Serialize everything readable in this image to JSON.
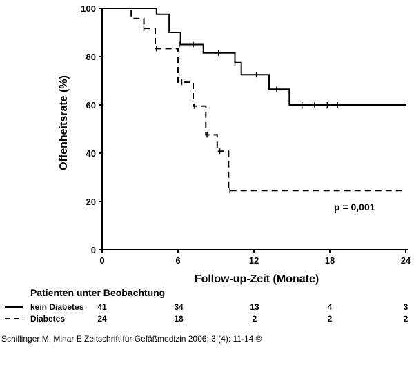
{
  "chart_data": {
    "type": "line",
    "ylabel": "Offenheitsrate (%)",
    "xlabel": "Follow-up-Zeit (Monate)",
    "xlim": [
      0,
      24
    ],
    "ylim": [
      0,
      100
    ],
    "x_ticks": [
      "0",
      "6",
      "12",
      "18",
      "24"
    ],
    "y_ticks": [
      "0",
      "20",
      "40",
      "60",
      "80",
      "100"
    ],
    "grid": false,
    "annotation": "p = 0,001",
    "series": [
      {
        "name": "kein Diabetes",
        "style": "solid",
        "steps": [
          [
            0,
            100
          ],
          [
            4.3,
            100
          ],
          [
            4.3,
            97.5
          ],
          [
            5.3,
            97.5
          ],
          [
            5.3,
            90
          ],
          [
            6.2,
            90
          ],
          [
            6.2,
            85
          ],
          [
            8.0,
            85
          ],
          [
            8.0,
            81.5
          ],
          [
            10.5,
            81.5
          ],
          [
            10.5,
            77.5
          ],
          [
            11.0,
            77.5
          ],
          [
            11.0,
            72.5
          ],
          [
            13.2,
            72.5
          ],
          [
            13.2,
            66.5
          ],
          [
            14.8,
            66.5
          ],
          [
            14.8,
            60
          ],
          [
            24,
            60
          ]
        ],
        "censored": [
          [
            6.1,
            85
          ],
          [
            7.2,
            85
          ],
          [
            9.2,
            81.5
          ],
          [
            10.5,
            77.5
          ],
          [
            12.2,
            72.5
          ],
          [
            13.8,
            66.5
          ],
          [
            15.8,
            60
          ],
          [
            16.8,
            60
          ],
          [
            17.8,
            60
          ],
          [
            18.6,
            60
          ]
        ]
      },
      {
        "name": "Diabetes",
        "style": "dashed",
        "steps": [
          [
            0,
            100
          ],
          [
            2.3,
            100
          ],
          [
            2.3,
            95.8
          ],
          [
            3.3,
            95.8
          ],
          [
            3.3,
            91.7
          ],
          [
            4.2,
            91.7
          ],
          [
            4.2,
            83.3
          ],
          [
            6.0,
            83.3
          ],
          [
            6.0,
            69.4
          ],
          [
            7.2,
            69.4
          ],
          [
            7.2,
            59.5
          ],
          [
            8.2,
            59.5
          ],
          [
            8.2,
            47.6
          ],
          [
            9.1,
            47.6
          ],
          [
            9.1,
            40.8
          ],
          [
            10.0,
            40.8
          ],
          [
            10.0,
            24.5
          ],
          [
            24,
            24.5
          ]
        ],
        "censored": [
          [
            3.3,
            91.7
          ],
          [
            4.3,
            83.3
          ],
          [
            6.3,
            69.4
          ],
          [
            7.3,
            59.5
          ],
          [
            8.3,
            47.6
          ],
          [
            9.3,
            40.8
          ],
          [
            10.1,
            24.5
          ]
        ]
      }
    ]
  },
  "risk_table": {
    "header": "Patienten unter Beobachtung",
    "rows": [
      {
        "label": "kein Diabetes",
        "style": "solid",
        "counts": [
          "41",
          "34",
          "13",
          "4",
          "3"
        ]
      },
      {
        "label": "Diabetes",
        "style": "dashed",
        "counts": [
          "24",
          "18",
          "2",
          "2",
          "2"
        ]
      }
    ]
  },
  "citation": "Schillinger M, Minar E Zeitschrift für Gefäßmedizin 2006; 3 (4): 11-14 ©"
}
